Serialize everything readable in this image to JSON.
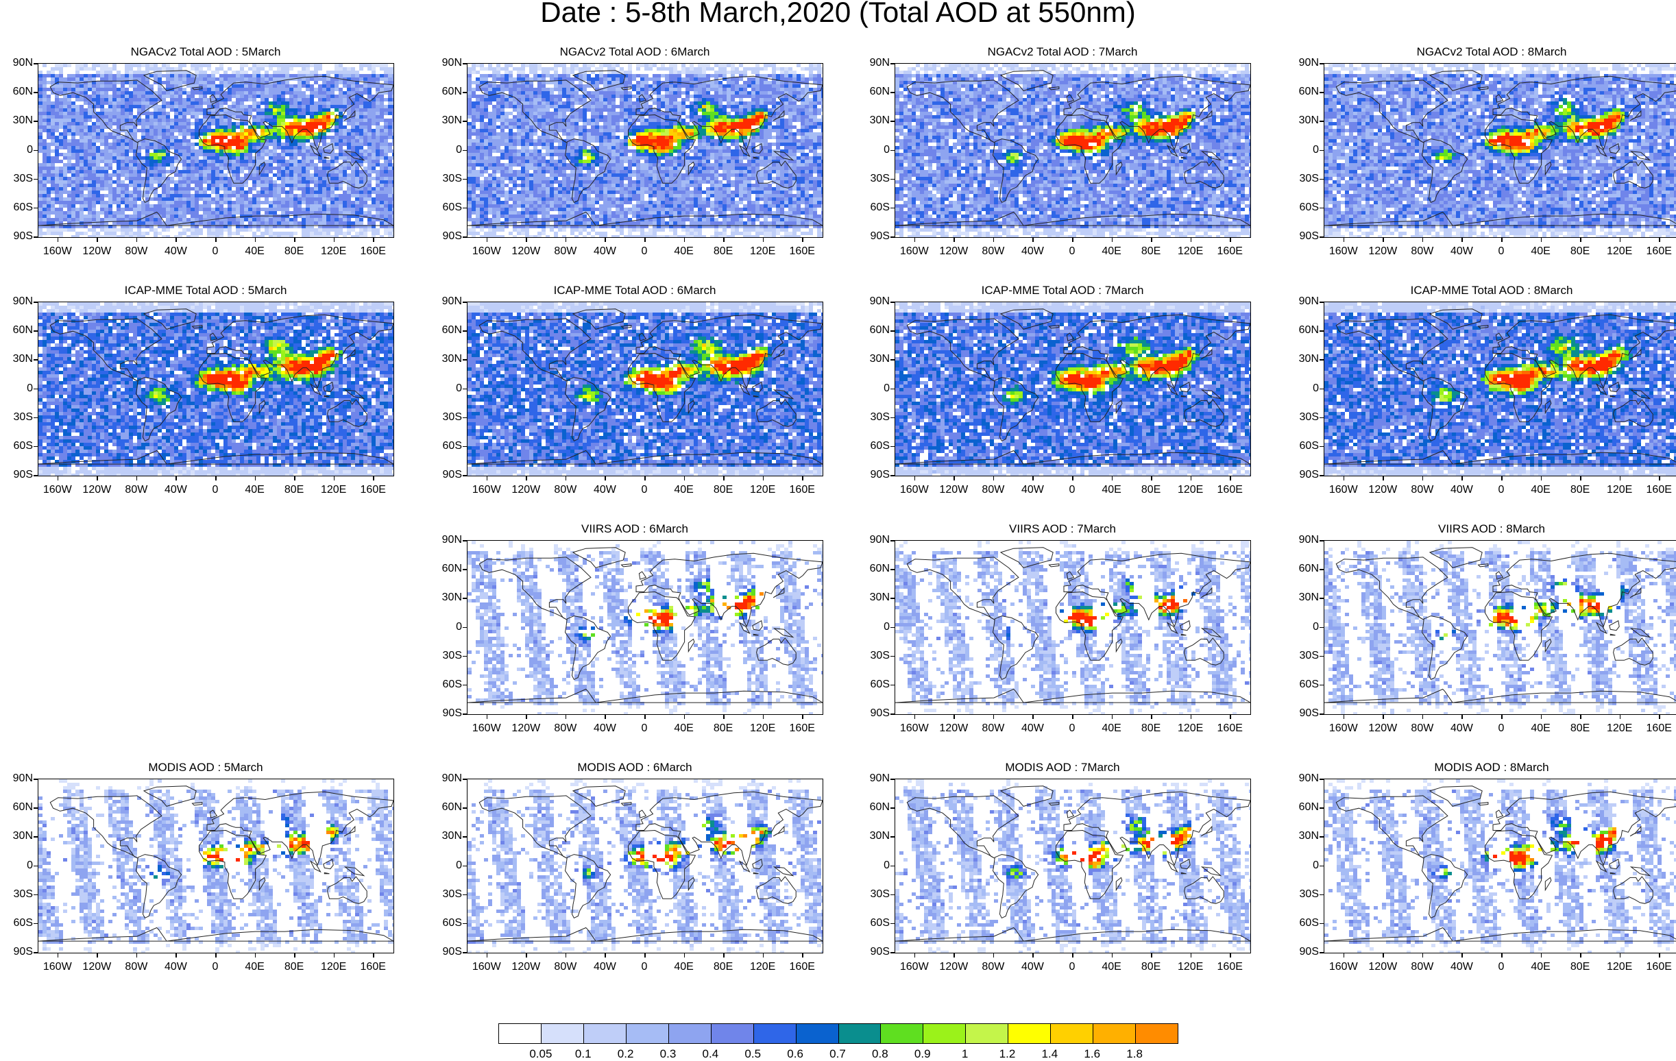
{
  "title": "Date : 5-8th March,2020 (Total AOD at 550nm)",
  "latitude_labels": [
    "90N",
    "60N",
    "30N",
    "0",
    "30S",
    "60S",
    "90S"
  ],
  "longitude_labels": [
    "160W",
    "120W",
    "80W",
    "40W",
    "0",
    "40E",
    "80E",
    "120E",
    "160E"
  ],
  "panels": [
    {
      "id": "ngac-5",
      "row": 0,
      "col": 0,
      "title": "NGACv2 Total AOD : 5March",
      "kind": "model",
      "density": 0.55
    },
    {
      "id": "ngac-6",
      "row": 0,
      "col": 1,
      "title": "NGACv2 Total AOD : 6March",
      "kind": "model",
      "density": 0.55
    },
    {
      "id": "ngac-7",
      "row": 0,
      "col": 2,
      "title": "NGACv2 Total AOD : 7March",
      "kind": "model",
      "density": 0.55
    },
    {
      "id": "ngac-8",
      "row": 0,
      "col": 3,
      "title": "NGACv2 Total AOD : 8March",
      "kind": "model",
      "density": 0.55
    },
    {
      "id": "icap-5",
      "row": 1,
      "col": 0,
      "title": "ICAP-MME Total AOD : 5March",
      "kind": "model",
      "density": 0.95
    },
    {
      "id": "icap-6",
      "row": 1,
      "col": 1,
      "title": "ICAP-MME Total AOD : 6March",
      "kind": "model",
      "density": 0.95
    },
    {
      "id": "icap-7",
      "row": 1,
      "col": 2,
      "title": "ICAP-MME Total AOD : 7March",
      "kind": "model",
      "density": 0.95
    },
    {
      "id": "icap-8",
      "row": 1,
      "col": 3,
      "title": "ICAP-MME Total AOD : 8March",
      "kind": "model",
      "density": 0.95
    },
    {
      "id": "viirs-6",
      "row": 2,
      "col": 1,
      "title": "VIIRS AOD : 6March",
      "kind": "satellite",
      "density": 0.6
    },
    {
      "id": "viirs-7",
      "row": 2,
      "col": 2,
      "title": "VIIRS AOD : 7March",
      "kind": "satellite",
      "density": 0.6
    },
    {
      "id": "viirs-8",
      "row": 2,
      "col": 3,
      "title": "VIIRS AOD : 8March",
      "kind": "satellite",
      "density": 0.6
    },
    {
      "id": "modis-5",
      "row": 3,
      "col": 0,
      "title": "MODIS AOD : 5March",
      "kind": "satellite",
      "density": 0.55
    },
    {
      "id": "modis-6",
      "row": 3,
      "col": 1,
      "title": "MODIS AOD : 6March",
      "kind": "satellite",
      "density": 0.55
    },
    {
      "id": "modis-7",
      "row": 3,
      "col": 2,
      "title": "MODIS AOD : 7March",
      "kind": "satellite",
      "density": 0.55
    },
    {
      "id": "modis-8",
      "row": 3,
      "col": 3,
      "title": "MODIS AOD : 8March",
      "kind": "satellite",
      "density": 0.55
    }
  ],
  "colorbar": {
    "colors": [
      "#ffffff",
      "#d6e0fb",
      "#bfcef8",
      "#a6bcf5",
      "#8ea4f0",
      "#7085ea",
      "#2f66e8",
      "#0a62cf",
      "#0a8e8e",
      "#5fdf20",
      "#9bf21a",
      "#c4f54a",
      "#ffff00",
      "#ffd000",
      "#ffb000",
      "#ff8c00",
      "#ff6a00",
      "#ff2a00"
    ],
    "labels": [
      "0.05",
      "0.1",
      "0.2",
      "0.3",
      "0.4",
      "0.5",
      "0.6",
      "0.7",
      "0.8",
      "0.9",
      "1",
      "1.2",
      "1.4",
      "1.6",
      "1.8"
    ]
  }
}
